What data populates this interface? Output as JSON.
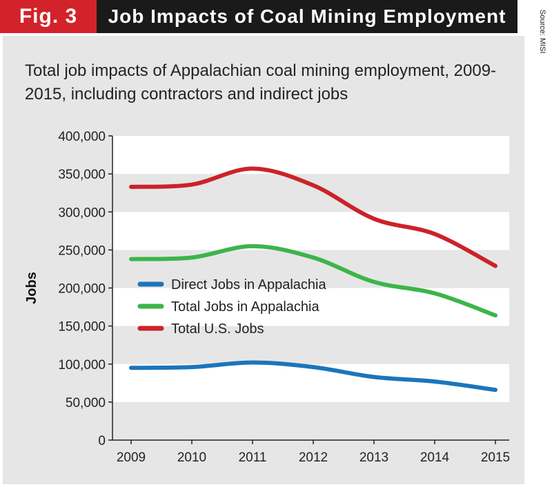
{
  "header": {
    "fig_label": "Fig. 3",
    "title": "Job Impacts of Coal Mining Employment",
    "source": "Source: MISI"
  },
  "chart_data": {
    "type": "line",
    "title": "",
    "subtitle": "Total job impacts of Appalachian coal mining employment, 2009-2015, including contractors and indirect jobs",
    "xlabel": "",
    "ylabel": "Jobs",
    "x": [
      "2009",
      "2010",
      "2011",
      "2012",
      "2013",
      "2014",
      "2015"
    ],
    "ylim": [
      0,
      400000
    ],
    "yticks": [
      0,
      50000,
      100000,
      150000,
      200000,
      250000,
      300000,
      350000,
      400000
    ],
    "ytick_labels": [
      "0",
      "50,000",
      "100,000",
      "150,000",
      "200,000",
      "250,000",
      "300,000",
      "350,000",
      "400,000"
    ],
    "grid": "alternating horizontal bands",
    "legend_position": "left-middle",
    "series": [
      {
        "name": "Direct Jobs in Appalachia",
        "color": "#1b75bb",
        "values": [
          95000,
          96000,
          102000,
          96000,
          83000,
          77000,
          66000
        ]
      },
      {
        "name": "Total Jobs in Appalachia",
        "color": "#3cb54a",
        "values": [
          238000,
          240000,
          255000,
          240000,
          208000,
          193000,
          164000
        ]
      },
      {
        "name": "Total U.S. Jobs",
        "color": "#cc2229",
        "values": [
          333000,
          336000,
          357000,
          335000,
          291000,
          271000,
          229000
        ]
      }
    ]
  }
}
